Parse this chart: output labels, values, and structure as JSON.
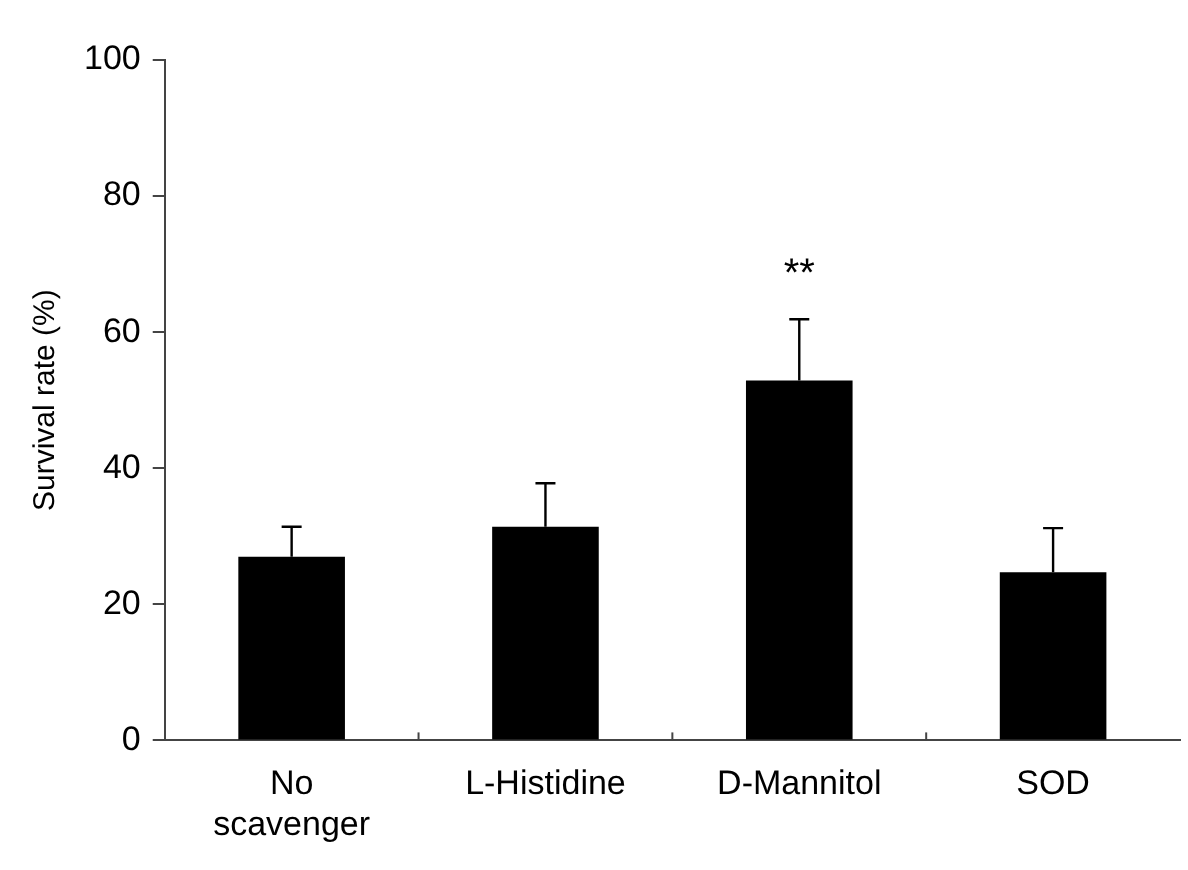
{
  "chart_data": {
    "type": "bar",
    "ylabel": "Survival rate (%)",
    "categories": [
      "No scavenger",
      "L-Histidine",
      "D-Mannitol",
      "SOD"
    ],
    "values": [
      27.0,
      31.4,
      52.9,
      24.7
    ],
    "color": "#000000",
    "errors": [
      [
        27.0,
        31.4
      ],
      [
        31.4,
        37.8
      ],
      [
        52.9,
        61.9
      ],
      [
        24.7,
        31.2
      ]
    ],
    "ylim": [
      0,
      100
    ],
    "yticks": [
      0,
      20,
      40,
      60,
      80,
      100
    ],
    "grid": false,
    "legend": false,
    "annotations": [
      "**"
    ]
  }
}
